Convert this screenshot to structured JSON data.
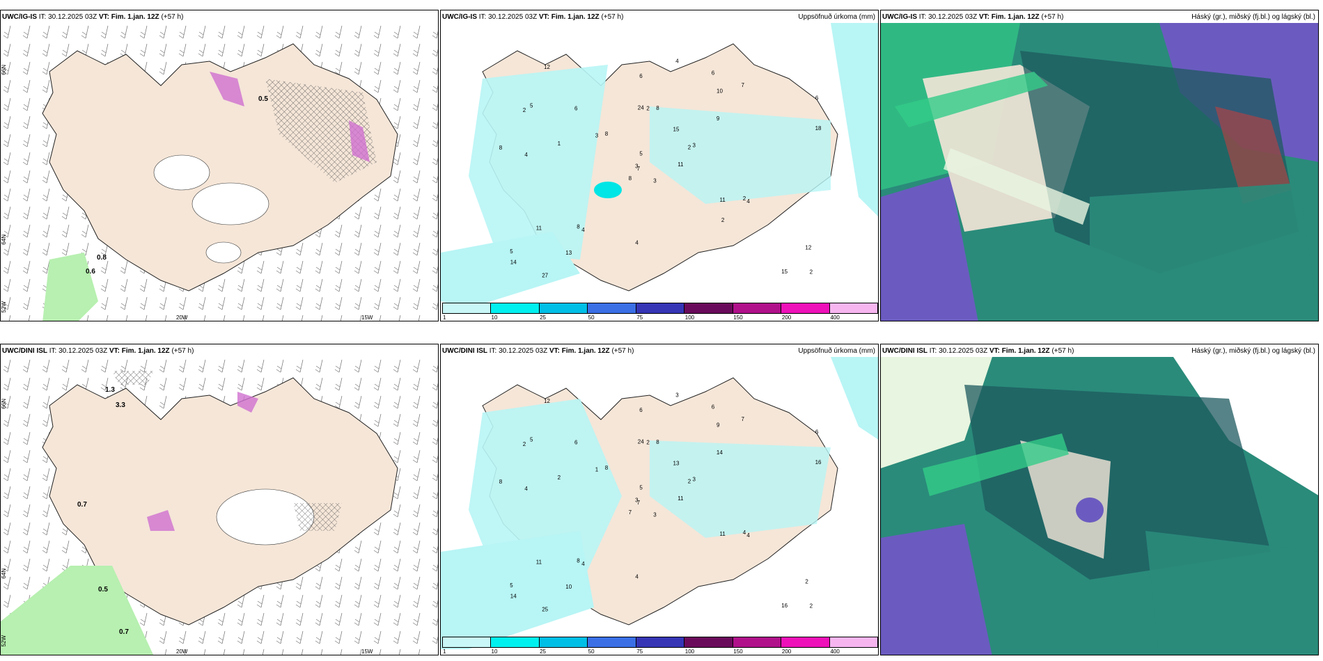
{
  "colors": {
    "land": "#f5e6d8",
    "precip_light": "#b8f5f5",
    "precip_cyan": "#00e5e5",
    "rain_green": "#b7f0b0",
    "snow_magenta": "#d070d0",
    "cloud_dark": "#1e5a5f",
    "cloud_teal": "#2a8b7a",
    "cloud_green": "#33cc88",
    "cloud_blue": "#6b5bc0",
    "cloud_red": "#c04040"
  },
  "colorbar": {
    "ticks": [
      "1",
      "10",
      "25",
      "50",
      "75",
      "100",
      "150",
      "200",
      "400"
    ],
    "colors": [
      "#c9f7f7",
      "#00f0f0",
      "#00bfe6",
      "#3a6fe6",
      "#3535b5",
      "#6a0a5a",
      "#b0108a",
      "#ee10b8",
      "#f7b5f0"
    ]
  },
  "panels": [
    {
      "model": "UWC/IG-IS",
      "it_label": "IT:",
      "it_value": "30.12.2025 03Z",
      "vt_label": "VT:",
      "vt_value": "Fim. 1.jan. 12Z",
      "lead": "(+57 h)",
      "right_title": "",
      "lat_labels": [
        "66N",
        "64N",
        "52W"
      ],
      "lon_labels": [
        "20W",
        "15W"
      ],
      "values": [
        "0.8",
        "0.6",
        "0.5"
      ]
    },
    {
      "model": "UWC/IG-IS",
      "it_label": "IT:",
      "it_value": "30.12.2025 03Z",
      "vt_label": "VT:",
      "vt_value": "Fim. 1.jan. 12Z",
      "lead": "(+57 h)",
      "right_title": "Uppsöfnuð úrkoma (mm)",
      "values": [
        "3",
        "2",
        "7",
        "5",
        "2",
        "4",
        "6",
        "8",
        "10",
        "11",
        "12",
        "2",
        "4",
        "6",
        "8",
        "9",
        "27",
        "24",
        "15",
        "11",
        "8",
        "14",
        "13",
        "2",
        "3",
        "4",
        "5",
        "6",
        "8",
        "11",
        "18",
        "3",
        "4",
        "5",
        "6",
        "7",
        "8",
        "15",
        "12",
        "2",
        "4",
        "3",
        "1",
        "2"
      ]
    },
    {
      "model": "UWC/IG-IS",
      "it_label": "IT:",
      "it_value": "30.12.2025 03Z",
      "vt_label": "VT:",
      "vt_value": "Fim. 1.jan. 12Z",
      "lead": "(+57 h)",
      "right_title": "Háský (gr.), miðský (fj.bl.) og lágský (bl.)"
    },
    {
      "model": "UWC/DINI ISL",
      "it_label": "IT:",
      "it_value": "30.12.2025 03Z",
      "vt_label": "VT:",
      "vt_value": "Fim. 1.jan. 12Z",
      "lead": "(+57 h)",
      "right_title": "",
      "lat_labels": [
        "66N",
        "64N",
        "52W"
      ],
      "lon_labels": [
        "20W",
        "15W"
      ],
      "values": [
        "1.3",
        "3.3",
        "0.7",
        "0.5",
        "0.7"
      ]
    },
    {
      "model": "UWC/DINI ISL",
      "it_label": "IT:",
      "it_value": "30.12.2025 03Z",
      "vt_label": "VT:",
      "vt_value": "Fim. 1.jan. 12Z",
      "lead": "(+57 h)",
      "right_title": "Uppsöfnuð úrkoma (mm)",
      "values": [
        "3",
        "2",
        "7",
        "5",
        "2",
        "4",
        "6",
        "8",
        "9",
        "11",
        "12",
        "2",
        "4",
        "6",
        "7",
        "14",
        "25",
        "24",
        "13",
        "11",
        "8",
        "14",
        "10",
        "2",
        "3",
        "4",
        "5",
        "6",
        "8",
        "11",
        "16",
        "3",
        "4",
        "5",
        "6",
        "7",
        "8",
        "16",
        "2",
        "4",
        "3",
        "1",
        "2"
      ]
    },
    {
      "model": "UWC/DINI ISL",
      "it_label": "IT:",
      "it_value": "30.12.2025 03Z",
      "vt_label": "VT:",
      "vt_value": "Fim. 1.jan. 12Z",
      "lead": "(+57 h)",
      "right_title": "Háský (gr.), miðský (fj.bl.) og lágský (bl.)"
    }
  ]
}
